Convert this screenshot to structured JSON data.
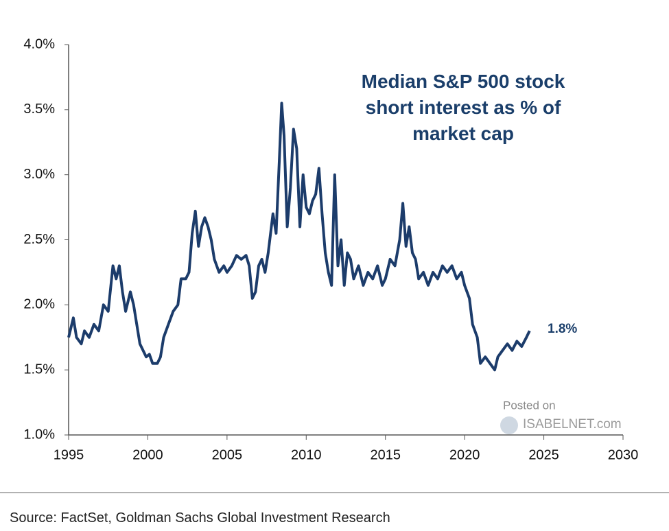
{
  "chart_data": {
    "type": "line",
    "title": "Median S&P 500 stock short interest as % of market cap",
    "annotation": "1.8%",
    "watermark": {
      "posted": "Posted on",
      "site": "ISABELNET.com"
    },
    "source": "Source: FactSet, Goldman Sachs Global Investment Research",
    "color": "#1c3c6b",
    "x": [
      1995.0,
      1995.3,
      1995.5,
      1995.8,
      1996.0,
      1996.3,
      1996.6,
      1996.9,
      1997.2,
      1997.5,
      1997.8,
      1998.0,
      1998.2,
      1998.4,
      1998.6,
      1998.9,
      1999.1,
      1999.3,
      1999.5,
      1999.7,
      1999.9,
      2000.1,
      2000.3,
      2000.6,
      2000.8,
      2001.0,
      2001.3,
      2001.6,
      2001.9,
      2002.1,
      2002.4,
      2002.6,
      2002.8,
      2003.0,
      2003.2,
      2003.4,
      2003.6,
      2003.8,
      2004.0,
      2004.2,
      2004.5,
      2004.8,
      2005.0,
      2005.3,
      2005.6,
      2005.9,
      2006.2,
      2006.4,
      2006.6,
      2006.8,
      2007.0,
      2007.2,
      2007.4,
      2007.6,
      2007.9,
      2008.1,
      2008.3,
      2008.45,
      2008.6,
      2008.8,
      2009.0,
      2009.2,
      2009.4,
      2009.6,
      2009.8,
      2010.0,
      2010.2,
      2010.4,
      2010.6,
      2010.8,
      2011.0,
      2011.2,
      2011.4,
      2011.6,
      2011.8,
      2012.0,
      2012.2,
      2012.4,
      2012.6,
      2012.8,
      2013.0,
      2013.3,
      2013.6,
      2013.9,
      2014.2,
      2014.5,
      2014.8,
      2015.0,
      2015.3,
      2015.6,
      2015.9,
      2016.1,
      2016.3,
      2016.5,
      2016.7,
      2016.9,
      2017.1,
      2017.4,
      2017.7,
      2018.0,
      2018.3,
      2018.6,
      2018.9,
      2019.2,
      2019.5,
      2019.8,
      2020.0,
      2020.3,
      2020.5,
      2020.8,
      2021.0,
      2021.3,
      2021.6,
      2021.9,
      2022.1,
      2022.4,
      2022.7,
      2023.0,
      2023.3,
      2023.6,
      2023.9,
      2024.1
    ],
    "values": [
      1.75,
      1.9,
      1.75,
      1.7,
      1.8,
      1.75,
      1.85,
      1.8,
      2.0,
      1.95,
      2.3,
      2.2,
      2.3,
      2.1,
      1.95,
      2.1,
      2.0,
      1.85,
      1.7,
      1.65,
      1.6,
      1.62,
      1.55,
      1.55,
      1.6,
      1.75,
      1.85,
      1.95,
      2.0,
      2.2,
      2.2,
      2.25,
      2.55,
      2.72,
      2.45,
      2.6,
      2.67,
      2.6,
      2.5,
      2.35,
      2.25,
      2.3,
      2.25,
      2.3,
      2.38,
      2.35,
      2.38,
      2.3,
      2.05,
      2.1,
      2.3,
      2.35,
      2.25,
      2.4,
      2.7,
      2.55,
      3.1,
      3.55,
      3.3,
      2.6,
      2.9,
      3.35,
      3.2,
      2.6,
      3.0,
      2.75,
      2.7,
      2.8,
      2.85,
      3.05,
      2.7,
      2.4,
      2.25,
      2.15,
      3.0,
      2.3,
      2.5,
      2.15,
      2.4,
      2.35,
      2.2,
      2.3,
      2.15,
      2.25,
      2.2,
      2.3,
      2.15,
      2.2,
      2.35,
      2.3,
      2.5,
      2.78,
      2.45,
      2.6,
      2.4,
      2.35,
      2.2,
      2.25,
      2.15,
      2.25,
      2.2,
      2.3,
      2.25,
      2.3,
      2.2,
      2.25,
      2.15,
      2.05,
      1.85,
      1.75,
      1.55,
      1.6,
      1.55,
      1.5,
      1.6,
      1.65,
      1.7,
      1.65,
      1.72,
      1.68,
      1.75,
      1.8
    ],
    "xlim": [
      1995,
      2030
    ],
    "xticks": [
      1995,
      2000,
      2005,
      2010,
      2015,
      2020,
      2025,
      2030
    ],
    "ylim": [
      1.0,
      4.0
    ],
    "yticks": [
      {
        "value": 1.0,
        "label": "1.0%"
      },
      {
        "value": 1.5,
        "label": "1.5%"
      },
      {
        "value": 2.0,
        "label": "2.0%"
      },
      {
        "value": 2.5,
        "label": "2.5%"
      },
      {
        "value": 3.0,
        "label": "3.0%"
      },
      {
        "value": 3.5,
        "label": "3.5%"
      },
      {
        "value": 4.0,
        "label": "4.0%"
      }
    ],
    "grid": false
  }
}
